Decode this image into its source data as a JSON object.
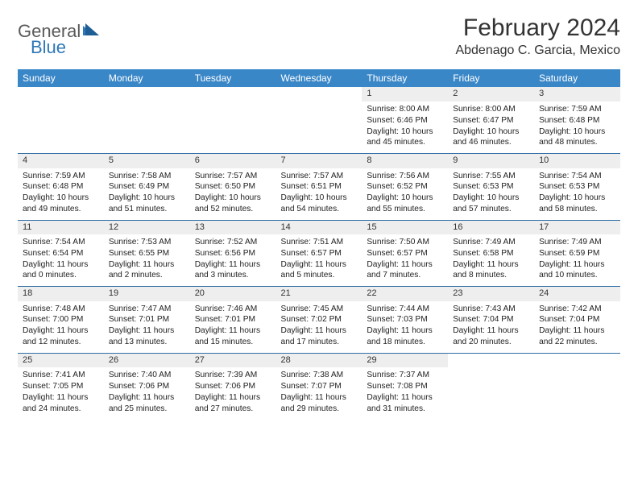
{
  "logo": {
    "part1": "General",
    "part2": "Blue"
  },
  "title": "February 2024",
  "location": "Abdenago C. Garcia, Mexico",
  "colors": {
    "header_bg": "#3a87c8",
    "header_text": "#ffffff",
    "daynum_bg": "#eeeeee",
    "row_border": "#2e6da4",
    "logo_gray": "#5a5a5a",
    "logo_blue": "#2e78b7"
  },
  "weekdays": [
    "Sunday",
    "Monday",
    "Tuesday",
    "Wednesday",
    "Thursday",
    "Friday",
    "Saturday"
  ],
  "weeks": [
    {
      "nums": [
        "",
        "",
        "",
        "",
        "1",
        "2",
        "3"
      ],
      "cells": [
        null,
        null,
        null,
        null,
        {
          "sunrise": "8:00 AM",
          "sunset": "6:46 PM",
          "dl": "10 hours and 45 minutes."
        },
        {
          "sunrise": "8:00 AM",
          "sunset": "6:47 PM",
          "dl": "10 hours and 46 minutes."
        },
        {
          "sunrise": "7:59 AM",
          "sunset": "6:48 PM",
          "dl": "10 hours and 48 minutes."
        }
      ]
    },
    {
      "nums": [
        "4",
        "5",
        "6",
        "7",
        "8",
        "9",
        "10"
      ],
      "cells": [
        {
          "sunrise": "7:59 AM",
          "sunset": "6:48 PM",
          "dl": "10 hours and 49 minutes."
        },
        {
          "sunrise": "7:58 AM",
          "sunset": "6:49 PM",
          "dl": "10 hours and 51 minutes."
        },
        {
          "sunrise": "7:57 AM",
          "sunset": "6:50 PM",
          "dl": "10 hours and 52 minutes."
        },
        {
          "sunrise": "7:57 AM",
          "sunset": "6:51 PM",
          "dl": "10 hours and 54 minutes."
        },
        {
          "sunrise": "7:56 AM",
          "sunset": "6:52 PM",
          "dl": "10 hours and 55 minutes."
        },
        {
          "sunrise": "7:55 AM",
          "sunset": "6:53 PM",
          "dl": "10 hours and 57 minutes."
        },
        {
          "sunrise": "7:54 AM",
          "sunset": "6:53 PM",
          "dl": "10 hours and 58 minutes."
        }
      ]
    },
    {
      "nums": [
        "11",
        "12",
        "13",
        "14",
        "15",
        "16",
        "17"
      ],
      "cells": [
        {
          "sunrise": "7:54 AM",
          "sunset": "6:54 PM",
          "dl": "11 hours and 0 minutes."
        },
        {
          "sunrise": "7:53 AM",
          "sunset": "6:55 PM",
          "dl": "11 hours and 2 minutes."
        },
        {
          "sunrise": "7:52 AM",
          "sunset": "6:56 PM",
          "dl": "11 hours and 3 minutes."
        },
        {
          "sunrise": "7:51 AM",
          "sunset": "6:57 PM",
          "dl": "11 hours and 5 minutes."
        },
        {
          "sunrise": "7:50 AM",
          "sunset": "6:57 PM",
          "dl": "11 hours and 7 minutes."
        },
        {
          "sunrise": "7:49 AM",
          "sunset": "6:58 PM",
          "dl": "11 hours and 8 minutes."
        },
        {
          "sunrise": "7:49 AM",
          "sunset": "6:59 PM",
          "dl": "11 hours and 10 minutes."
        }
      ]
    },
    {
      "nums": [
        "18",
        "19",
        "20",
        "21",
        "22",
        "23",
        "24"
      ],
      "cells": [
        {
          "sunrise": "7:48 AM",
          "sunset": "7:00 PM",
          "dl": "11 hours and 12 minutes."
        },
        {
          "sunrise": "7:47 AM",
          "sunset": "7:01 PM",
          "dl": "11 hours and 13 minutes."
        },
        {
          "sunrise": "7:46 AM",
          "sunset": "7:01 PM",
          "dl": "11 hours and 15 minutes."
        },
        {
          "sunrise": "7:45 AM",
          "sunset": "7:02 PM",
          "dl": "11 hours and 17 minutes."
        },
        {
          "sunrise": "7:44 AM",
          "sunset": "7:03 PM",
          "dl": "11 hours and 18 minutes."
        },
        {
          "sunrise": "7:43 AM",
          "sunset": "7:04 PM",
          "dl": "11 hours and 20 minutes."
        },
        {
          "sunrise": "7:42 AM",
          "sunset": "7:04 PM",
          "dl": "11 hours and 22 minutes."
        }
      ]
    },
    {
      "nums": [
        "25",
        "26",
        "27",
        "28",
        "29",
        "",
        ""
      ],
      "cells": [
        {
          "sunrise": "7:41 AM",
          "sunset": "7:05 PM",
          "dl": "11 hours and 24 minutes."
        },
        {
          "sunrise": "7:40 AM",
          "sunset": "7:06 PM",
          "dl": "11 hours and 25 minutes."
        },
        {
          "sunrise": "7:39 AM",
          "sunset": "7:06 PM",
          "dl": "11 hours and 27 minutes."
        },
        {
          "sunrise": "7:38 AM",
          "sunset": "7:07 PM",
          "dl": "11 hours and 29 minutes."
        },
        {
          "sunrise": "7:37 AM",
          "sunset": "7:08 PM",
          "dl": "11 hours and 31 minutes."
        },
        null,
        null
      ]
    }
  ]
}
